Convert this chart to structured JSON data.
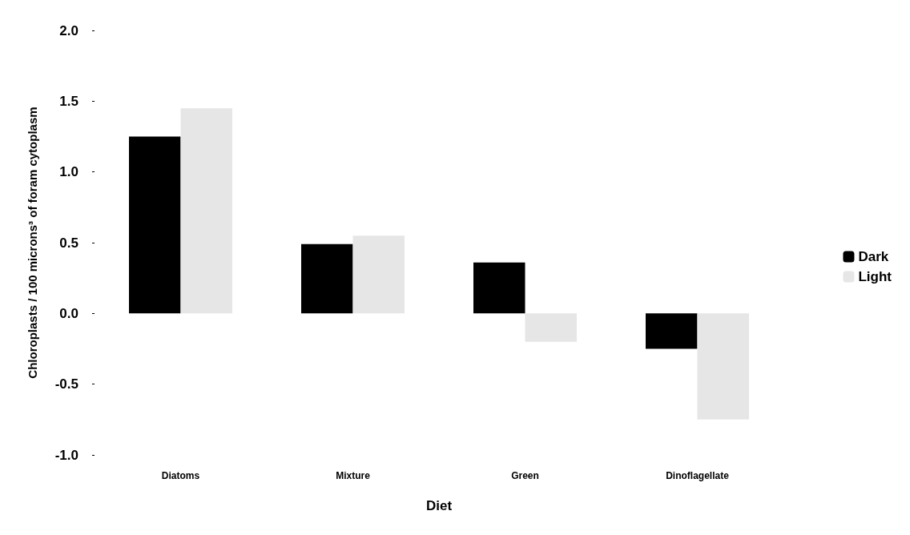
{
  "chart_data": {
    "type": "bar",
    "xlabel": "Diet",
    "ylabel": "Chloroplasts / 100 microns³ of foram cytoplasm",
    "categories": [
      "Diatoms",
      "Mixture",
      "Green",
      "Dinoflagellate"
    ],
    "series": [
      {
        "name": "Dark",
        "color": "#000000",
        "values": [
          1.25,
          0.49,
          0.36,
          -0.25
        ]
      },
      {
        "name": "Light",
        "color": "#e6e6e6",
        "values": [
          1.45,
          0.55,
          -0.2,
          -0.75
        ]
      }
    ],
    "ylim": [
      -1,
      2
    ],
    "yticks": [
      {
        "value": -1,
        "label": "-1.0"
      },
      {
        "value": -0.5,
        "label": "-0.5"
      },
      {
        "value": 0,
        "label": "0.0"
      },
      {
        "value": 0.5,
        "label": "0.5"
      },
      {
        "value": 1,
        "label": "1.0"
      },
      {
        "value": 1.5,
        "label": "1.5"
      },
      {
        "value": 2,
        "label": "2.0"
      }
    ],
    "grid": false,
    "legend": "right"
  }
}
